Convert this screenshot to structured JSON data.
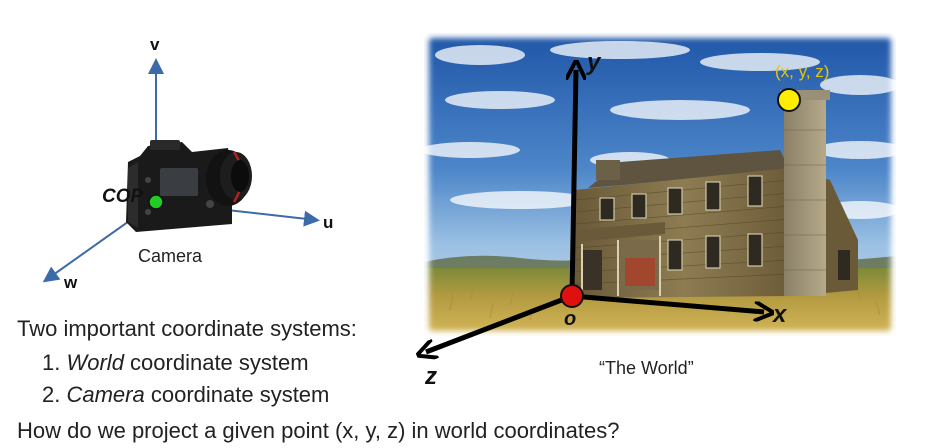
{
  "camera": {
    "axes": {
      "u": "u",
      "v": "v",
      "w": "w"
    },
    "cop_label": "COP",
    "caption": "Camera"
  },
  "world": {
    "axes": {
      "x": "x",
      "y": "y",
      "z": "z"
    },
    "origin_label": "o",
    "point_label": "(x, y, z)",
    "caption": "“The World”"
  },
  "text": {
    "intro": "Two important coordinate systems:",
    "item1_num": "1.",
    "item1_emph": "World",
    "item1_rest": " coordinate system",
    "item2_num": "2.",
    "item2_emph": "Camera",
    "item2_rest": " coordinate system",
    "question": "How do we project a given point (x, y, z) in world coordinates?"
  },
  "colors": {
    "cop_point": "#22cc22",
    "origin_point": "#e01010",
    "world_point": "#ffee00",
    "camera_axis": "#3d6aa8",
    "world_axis": "#000000",
    "point_label": "#e8c400"
  }
}
